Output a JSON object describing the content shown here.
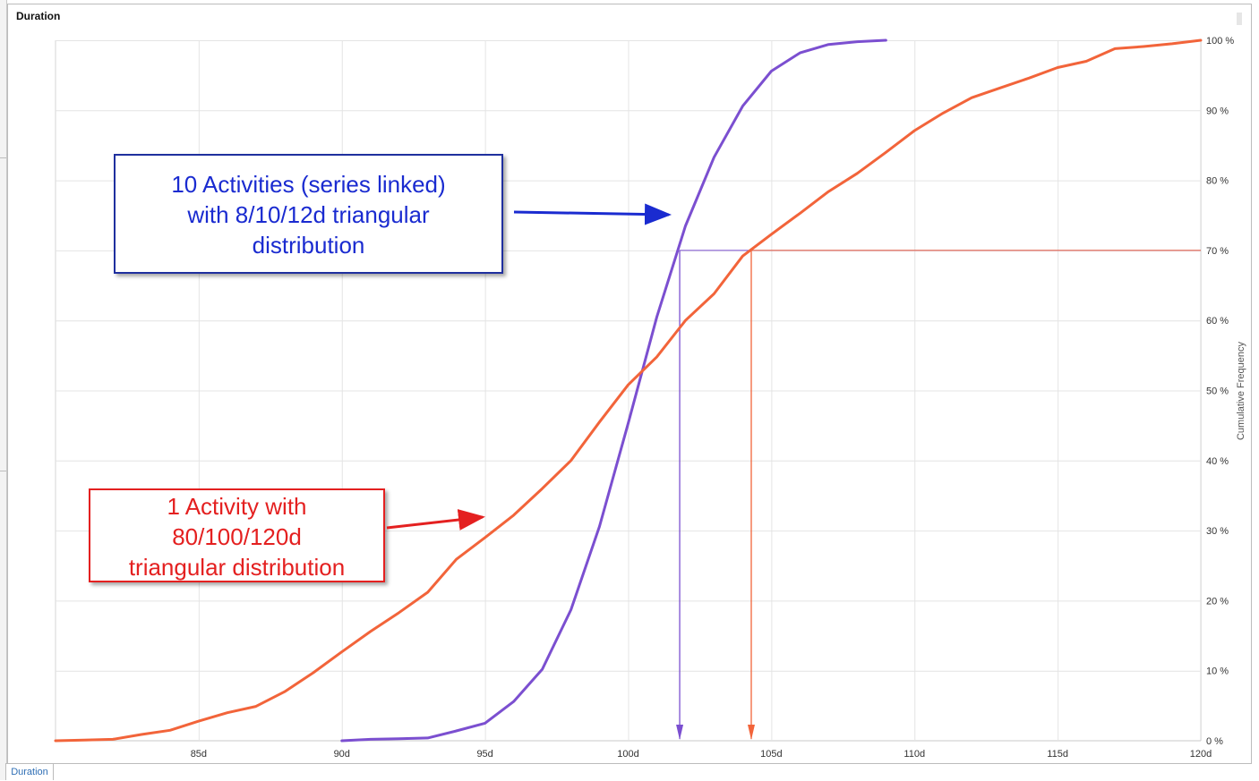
{
  "panel": {
    "title": "Duration",
    "tab_label": "Duration"
  },
  "annotations": {
    "blue": {
      "lines": [
        "10 Activities (series linked)",
        "with 8/10/12d triangular",
        "distribution"
      ],
      "color": "#1a2bd0"
    },
    "red": {
      "lines": [
        "1 Activity with",
        "80/100/120d",
        "triangular distribution"
      ],
      "color": "#e42020"
    }
  },
  "chart_data": {
    "type": "line",
    "xlabel": "",
    "ylabel": "Cumulative Frequency",
    "x_unit": "d",
    "xlim": [
      80,
      120
    ],
    "ylim": [
      0,
      100
    ],
    "xticks": [
      85,
      90,
      95,
      100,
      105,
      110,
      115,
      120
    ],
    "xtick_labels": [
      "85d",
      "90d",
      "95d",
      "100d",
      "105d",
      "110d",
      "115d",
      "120d"
    ],
    "yticks": [
      0,
      10,
      20,
      30,
      40,
      50,
      60,
      70,
      80,
      90,
      100
    ],
    "ytick_labels": [
      "0 %",
      "10 %",
      "20 %",
      "30 %",
      "40 %",
      "50 %",
      "60 %",
      "70 %",
      "80 %",
      "90 %",
      "100 %"
    ],
    "y_axis_side": "right",
    "grid": true,
    "series": [
      {
        "color": "#7b4fd0",
        "x": [
          90,
          91,
          92,
          93,
          94,
          95,
          96,
          97,
          98,
          99,
          100,
          101,
          102,
          103,
          104,
          105,
          106,
          107,
          108,
          109
        ],
        "y": [
          0,
          0.2,
          0.3,
          0.4,
          1.4,
          2.5,
          5.6,
          10.2,
          18.7,
          30.6,
          45.3,
          60.5,
          73.5,
          83.3,
          90.6,
          95.6,
          98.2,
          99.4,
          99.8,
          100
        ]
      },
      {
        "color": "#f2643a",
        "x": [
          80,
          81,
          82,
          83,
          84,
          85,
          86,
          87,
          88,
          89,
          90,
          91,
          92,
          93,
          94,
          95,
          96,
          97,
          98,
          99,
          100,
          101,
          102,
          103,
          104,
          105,
          106,
          107,
          108,
          109,
          110,
          111,
          112,
          113,
          114,
          115,
          116,
          117,
          118,
          119,
          120
        ],
        "y": [
          0,
          0.1,
          0.2,
          0.9,
          1.5,
          2.8,
          4.0,
          4.9,
          7.0,
          9.7,
          12.7,
          15.6,
          18.3,
          21.2,
          25.9,
          29.0,
          32.2,
          36.0,
          40.0,
          45.5,
          50.8,
          54.8,
          60.0,
          63.8,
          69.2,
          72.3,
          75.3,
          78.4,
          81.0,
          84.0,
          87.1,
          89.6,
          91.8,
          93.2,
          94.6,
          96.1,
          97.0,
          98.8,
          99.1,
          99.5,
          100
        ]
      }
    ],
    "reference_lines": [
      {
        "color": "#7b4fd0",
        "percent": 70,
        "x_at": 101.8
      },
      {
        "color": "#f2643a",
        "percent": 70,
        "x_at": 104.3
      }
    ]
  }
}
